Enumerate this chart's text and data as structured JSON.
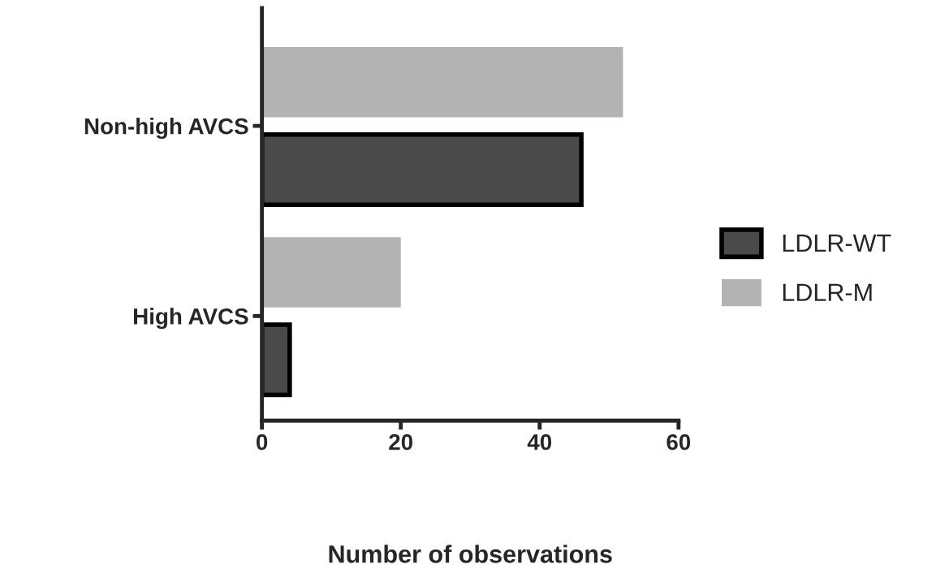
{
  "chart_data": {
    "type": "bar",
    "orientation": "horizontal",
    "xlabel": "Number of observations",
    "categories": [
      "Non-high AVCS",
      "High AVCS"
    ],
    "series": [
      {
        "name": "LDLR-WT",
        "color": "#4a4a4a",
        "values": [
          46,
          4
        ]
      },
      {
        "name": "LDLR-M",
        "color": "#b3b3b3",
        "values": [
          52,
          20
        ]
      }
    ],
    "xlim": [
      0,
      60
    ],
    "xticks": [
      0,
      20,
      40,
      60
    ],
    "grid": false,
    "legend": "right"
  }
}
